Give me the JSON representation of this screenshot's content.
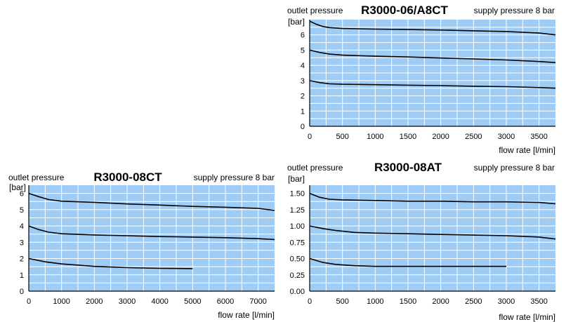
{
  "chart_data": [
    {
      "type": "line",
      "title": "R3000-06/A8CT",
      "subtitle": "supply pressure 8 bar",
      "ylabel": "outlet pressure",
      "yunit": "[bar]",
      "xlabel": "flow rate [l/min]",
      "xlim": [
        0,
        3750
      ],
      "ylim": [
        0,
        7
      ],
      "xticks": [
        0,
        500,
        1000,
        1500,
        2000,
        2500,
        3000,
        3500
      ],
      "yticks": [
        0,
        1,
        2,
        3,
        4,
        5,
        6
      ],
      "ytick_labels": [
        "0",
        "1",
        "2",
        "3",
        "4",
        "5",
        "6"
      ],
      "grid": true,
      "series": [
        {
          "x": [
            0,
            100,
            200,
            300,
            500,
            1000,
            1500,
            2000,
            2500,
            3000,
            3500,
            3750
          ],
          "y": [
            6.9,
            6.7,
            6.55,
            6.48,
            6.42,
            6.38,
            6.35,
            6.32,
            6.27,
            6.22,
            6.12,
            6.0
          ]
        },
        {
          "x": [
            0,
            150,
            300,
            500,
            1000,
            1500,
            2000,
            2500,
            3000,
            3500,
            3750
          ],
          "y": [
            5.0,
            4.85,
            4.74,
            4.67,
            4.6,
            4.55,
            4.48,
            4.42,
            4.35,
            4.25,
            4.18
          ]
        },
        {
          "x": [
            0,
            150,
            300,
            500,
            1000,
            1500,
            2000,
            2500,
            3000,
            3500,
            3750
          ],
          "y": [
            3.0,
            2.87,
            2.79,
            2.76,
            2.73,
            2.7,
            2.67,
            2.63,
            2.6,
            2.54,
            2.5
          ]
        }
      ]
    },
    {
      "type": "line",
      "title": "R3000-08CT",
      "subtitle": "supply pressure 8 bar",
      "ylabel": "outlet pressure",
      "yunit": "[bar]",
      "xlabel": "flow rate [l/min]",
      "xlim": [
        0,
        7500
      ],
      "ylim": [
        0,
        6.5
      ],
      "xticks": [
        0,
        1000,
        2000,
        3000,
        4000,
        5000,
        6000,
        7000
      ],
      "yticks": [
        0,
        1,
        2,
        3,
        4,
        5,
        6
      ],
      "ytick_labels": [
        "0",
        "1",
        "2",
        "3",
        "4",
        "5",
        "6"
      ],
      "grid": true,
      "series": [
        {
          "x": [
            0,
            300,
            600,
            1000,
            2000,
            3000,
            4000,
            5000,
            6000,
            7000,
            7500
          ],
          "y": [
            6.0,
            5.8,
            5.62,
            5.52,
            5.45,
            5.35,
            5.28,
            5.2,
            5.15,
            5.08,
            4.95
          ]
        },
        {
          "x": [
            0,
            300,
            600,
            1000,
            2000,
            3000,
            4000,
            5000,
            6000,
            7000,
            7500
          ],
          "y": [
            4.0,
            3.78,
            3.62,
            3.52,
            3.45,
            3.4,
            3.35,
            3.32,
            3.28,
            3.22,
            3.17
          ]
        },
        {
          "x": [
            0,
            500,
            1000,
            2000,
            3000,
            4000,
            5000
          ],
          "y": [
            2.0,
            1.8,
            1.67,
            1.52,
            1.44,
            1.4,
            1.38
          ]
        }
      ]
    },
    {
      "type": "line",
      "title": "R3000-08AT",
      "subtitle": "supply pressure 8 bar",
      "ylabel": "outlet pressure",
      "yunit": "[bar]",
      "xlabel": "flow rate [l/min]",
      "xlim": [
        0,
        3750
      ],
      "ylim": [
        0,
        1.625
      ],
      "xticks": [
        0,
        500,
        1000,
        1500,
        2000,
        2500,
        3000,
        3500
      ],
      "yticks": [
        0,
        0.25,
        0.5,
        0.75,
        1.0,
        1.25,
        1.5
      ],
      "ytick_labels": [
        "0.00",
        "0.25",
        "0.50",
        "0.75",
        "1.00",
        "1.25",
        "1.50"
      ],
      "grid": true,
      "series": [
        {
          "x": [
            0,
            150,
            300,
            500,
            1000,
            1500,
            2000,
            2500,
            3000,
            3500,
            3750
          ],
          "y": [
            1.5,
            1.44,
            1.41,
            1.4,
            1.39,
            1.38,
            1.38,
            1.37,
            1.37,
            1.36,
            1.34
          ]
        },
        {
          "x": [
            0,
            200,
            400,
            700,
            1000,
            1500,
            2000,
            2500,
            3000,
            3500,
            3750
          ],
          "y": [
            1.0,
            0.96,
            0.93,
            0.9,
            0.89,
            0.88,
            0.87,
            0.86,
            0.85,
            0.83,
            0.8
          ]
        },
        {
          "x": [
            0,
            200,
            400,
            700,
            1000,
            1500,
            2000,
            2500,
            3000
          ],
          "y": [
            0.5,
            0.44,
            0.41,
            0.39,
            0.38,
            0.38,
            0.38,
            0.38,
            0.38
          ]
        }
      ]
    }
  ],
  "colors": {
    "plot_background": "#9fccf5",
    "grid": "#ffffff",
    "line": "#000000"
  }
}
